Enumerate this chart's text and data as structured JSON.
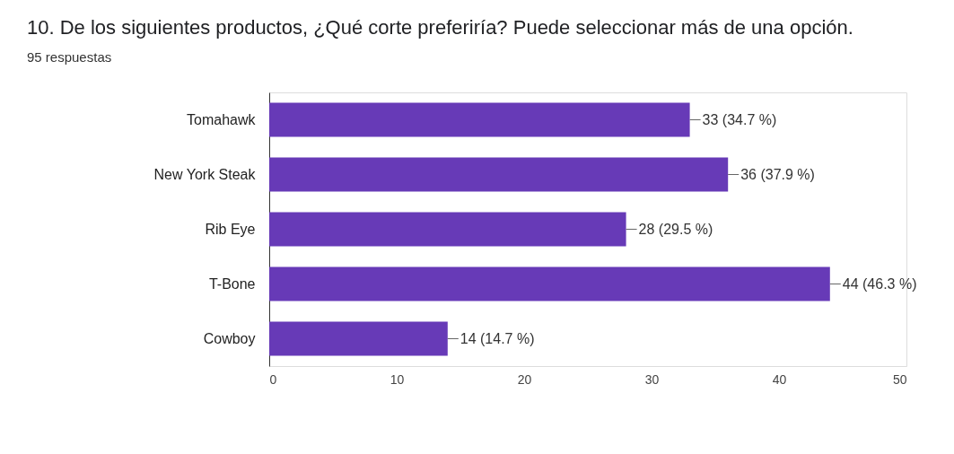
{
  "chart_data": {
    "type": "bar",
    "orientation": "horizontal",
    "title": "10. De los siguientes productos, ¿Qué corte preferiría? Puede seleccionar más de una opción.",
    "subtitle": "95 respuestas",
    "categories": [
      "Tomahawk",
      "New York Steak",
      "Rib Eye",
      "T-Bone",
      "Cowboy"
    ],
    "values": [
      33,
      36,
      28,
      44,
      14
    ],
    "value_labels": [
      "33 (34.7 %)",
      "36 (37.9 %)",
      "28 (29.5 %)",
      "44 (46.3 %)",
      "14 (14.7 %)"
    ],
    "color": "#673ab7",
    "xlim": [
      0,
      50
    ],
    "xticks": [
      0,
      10,
      20,
      30,
      40,
      50
    ],
    "grid": false
  }
}
